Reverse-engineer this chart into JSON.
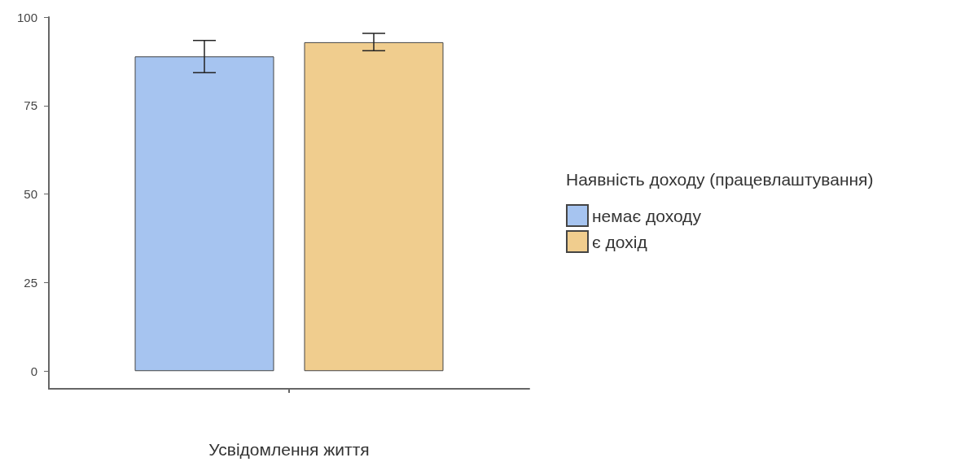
{
  "chart_data": {
    "type": "bar",
    "xlabel": "Усвідомлення життя",
    "legend_title": "Наявність доходу (працевлаштування)",
    "categories": [
      null
    ],
    "series": [
      {
        "name": "немає доходу",
        "color": "#a6c4f0",
        "values": [
          88.9
        ],
        "errors": [
          [
            84.3,
            93.4
          ]
        ]
      },
      {
        "name": "є дохід",
        "color": "#f0cd8e",
        "values": [
          92.9
        ],
        "errors": [
          [
            90.5,
            95.4
          ]
        ]
      }
    ],
    "ylim": [
      -5,
      100
    ],
    "yticks": [
      0,
      25,
      50,
      75,
      100
    ],
    "legend": "right"
  }
}
